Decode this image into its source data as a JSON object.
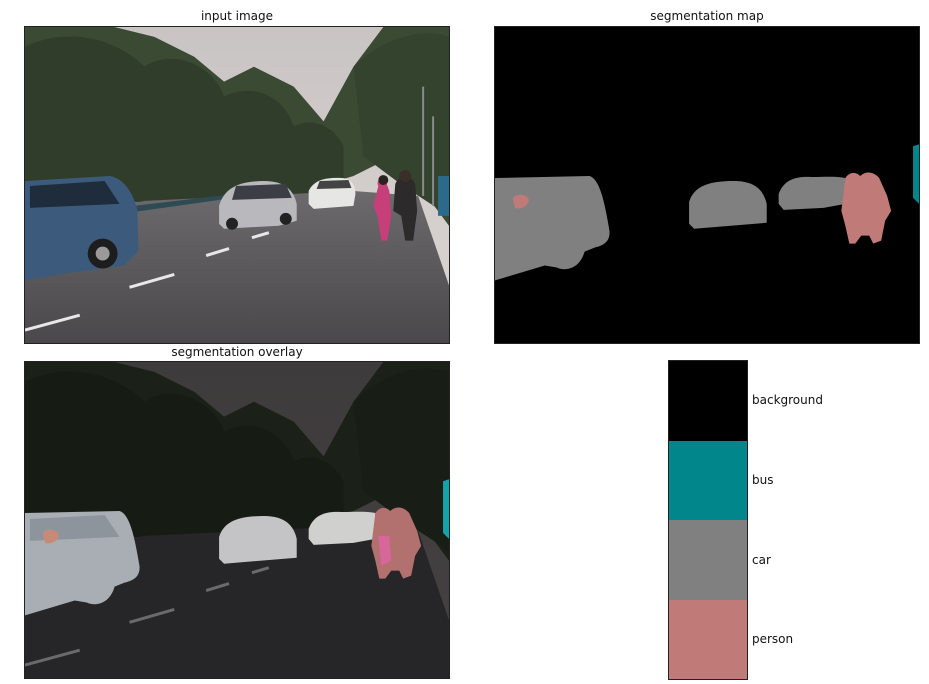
{
  "panels": {
    "input": {
      "title": "input image"
    },
    "segmap": {
      "title": "segmentation map"
    },
    "overlay": {
      "title": "segmentation overlay"
    }
  },
  "legend": [
    {
      "label": "background",
      "color": "#000000"
    },
    {
      "label": "bus",
      "color": "#00868b"
    },
    {
      "label": "car",
      "color": "#808080"
    },
    {
      "label": "person",
      "color": "#c07a78"
    }
  ]
}
